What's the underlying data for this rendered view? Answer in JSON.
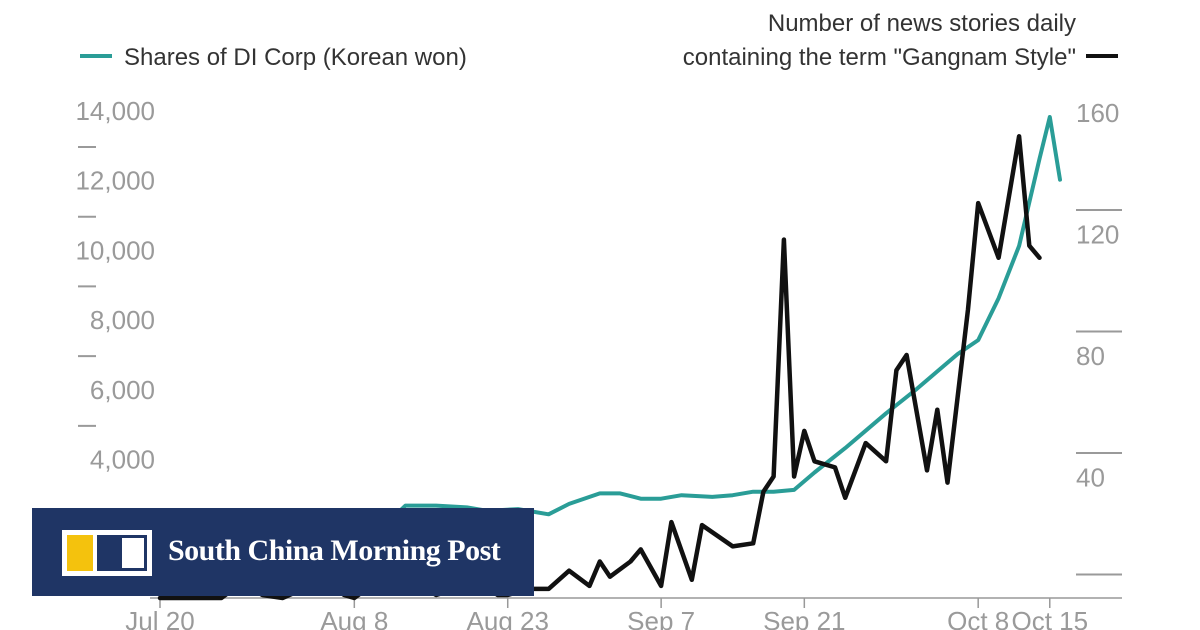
{
  "legend": {
    "left_label": "Shares of DI Corp (Korean won)",
    "right_label_line1": "Number of news stories daily",
    "right_label_line2": "containing the term \"Gangnam Style\""
  },
  "colors": {
    "shares": "#2a9d97",
    "news": "#111111",
    "axis_text": "#9a9a9a",
    "banner": "#1f3565",
    "logo_yellow": "#f4c20d"
  },
  "branding": {
    "publisher": "South China Morning Post"
  },
  "chart_data": {
    "type": "line",
    "left_axis": {
      "ticks": [
        "14,000",
        "12,000",
        "10,000",
        "8,000",
        "6,000",
        "4,000"
      ],
      "ylim": [
        0,
        14000
      ]
    },
    "right_axis": {
      "ticks": [
        "160",
        "120",
        "80",
        "40"
      ],
      "ylim": [
        0,
        160
      ]
    },
    "x_ticks": [
      "Jul 20",
      "Aug 8",
      "Aug 23",
      "Sep 7",
      "Sep 21",
      "Oct 8",
      "Oct 15"
    ],
    "series": [
      {
        "name": "Shares of DI Corp (Korean won)",
        "axis": "left",
        "points": [
          [
            "Jul 20",
            1950
          ],
          [
            "Jul 22",
            1950
          ],
          [
            "Jul 24",
            1950
          ],
          [
            "Jul 26",
            1950
          ],
          [
            "Jul 29",
            1950
          ],
          [
            "Aug 1",
            2000
          ],
          [
            "Aug 4",
            2000
          ],
          [
            "Aug 8",
            2050
          ],
          [
            "Aug 11",
            2100
          ],
          [
            "Aug 13",
            2650
          ],
          [
            "Aug 16",
            2650
          ],
          [
            "Aug 19",
            2600
          ],
          [
            "Aug 21",
            2500
          ],
          [
            "Aug 24",
            2550
          ],
          [
            "Aug 27",
            2400
          ],
          [
            "Aug 29",
            2700
          ],
          [
            "Sep 1",
            3000
          ],
          [
            "Sep 3",
            3000
          ],
          [
            "Sep 5",
            2850
          ],
          [
            "Sep 7",
            2850
          ],
          [
            "Sep 9",
            2950
          ],
          [
            "Sep 12",
            2900
          ],
          [
            "Sep 14",
            2950
          ],
          [
            "Sep 16",
            3050
          ],
          [
            "Sep 18",
            3050
          ],
          [
            "Sep 20",
            3100
          ],
          [
            "Sep 22",
            3600
          ],
          [
            "Sep 25",
            4300
          ],
          [
            "Sep 27",
            4800
          ],
          [
            "Sep 29",
            5300
          ],
          [
            "Oct 2",
            6000
          ],
          [
            "Oct 4",
            6500
          ],
          [
            "Oct 6",
            7000
          ],
          [
            "Oct 8",
            7400
          ],
          [
            "Oct 10",
            8600
          ],
          [
            "Oct 12",
            10100
          ],
          [
            "Oct 14",
            12600
          ],
          [
            "Oct 15",
            13800
          ],
          [
            "Oct 16",
            12000
          ]
        ]
      },
      {
        "name": "Number of news stories daily containing the term \"Gangnam Style\"",
        "axis": "right",
        "points": [
          [
            "Jul 20",
            0
          ],
          [
            "Jul 23",
            0
          ],
          [
            "Jul 26",
            0
          ],
          [
            "Jul 28",
            5
          ],
          [
            "Jul 30",
            1
          ],
          [
            "Aug 1",
            0
          ],
          [
            "Aug 3",
            3
          ],
          [
            "Aug 5",
            6
          ],
          [
            "Aug 7",
            1
          ],
          [
            "Aug 8",
            0
          ],
          [
            "Aug 10",
            5
          ],
          [
            "Aug 12",
            2
          ],
          [
            "Aug 14",
            5
          ],
          [
            "Aug 16",
            1
          ],
          [
            "Aug 18",
            3
          ],
          [
            "Aug 20",
            7
          ],
          [
            "Aug 22",
            1
          ],
          [
            "Aug 23",
            1
          ],
          [
            "Aug 25",
            3
          ],
          [
            "Aug 27",
            3
          ],
          [
            "Aug 29",
            9
          ],
          [
            "Aug 31",
            4
          ],
          [
            "Sep 1",
            12
          ],
          [
            "Sep 2",
            7
          ],
          [
            "Sep 4",
            12
          ],
          [
            "Sep 5",
            16
          ],
          [
            "Sep 7",
            4
          ],
          [
            "Sep 8",
            25
          ],
          [
            "Sep 10",
            6
          ],
          [
            "Sep 11",
            24
          ],
          [
            "Sep 14",
            17
          ],
          [
            "Sep 16",
            18
          ],
          [
            "Sep 17",
            35
          ],
          [
            "Sep 18",
            40
          ],
          [
            "Sep 19",
            118
          ],
          [
            "Sep 20",
            40
          ],
          [
            "Sep 21",
            55
          ],
          [
            "Sep 22",
            45
          ],
          [
            "Sep 24",
            43
          ],
          [
            "Sep 25",
            33
          ],
          [
            "Sep 27",
            51
          ],
          [
            "Sep 29",
            45
          ],
          [
            "Sep 30",
            75
          ],
          [
            "Oct 1",
            80
          ],
          [
            "Oct 3",
            42
          ],
          [
            "Oct 4",
            62
          ],
          [
            "Oct 5",
            38
          ],
          [
            "Oct 7",
            95
          ],
          [
            "Oct 8",
            130
          ],
          [
            "Oct 10",
            112
          ],
          [
            "Oct 12",
            152
          ],
          [
            "Oct 13",
            116
          ],
          [
            "Oct 14",
            112
          ]
        ]
      }
    ],
    "grid": false,
    "legend_position": "top"
  }
}
